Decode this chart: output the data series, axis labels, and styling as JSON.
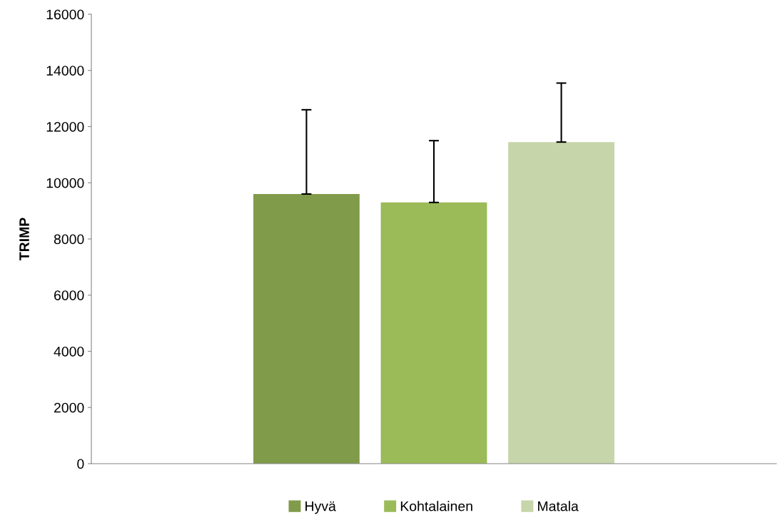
{
  "chart_data": {
    "type": "bar",
    "ylabel": "TRIMP",
    "categories": [
      null
    ],
    "series": [
      {
        "name": "Hyvä",
        "color": "#809b4a",
        "values": [
          9600
        ],
        "errors": [
          [
            9600,
            12600
          ]
        ]
      },
      {
        "name": "Kohtalainen",
        "color": "#9bbb59",
        "values": [
          9300
        ],
        "errors": [
          [
            9300,
            11500
          ]
        ]
      },
      {
        "name": "Matala",
        "color": "#c7d5aa",
        "values": [
          11450
        ],
        "errors": [
          [
            11450,
            13550
          ]
        ]
      }
    ],
    "ylim": [
      0,
      16000
    ],
    "yticks": [
      0,
      2000,
      4000,
      6000,
      8000,
      10000,
      12000,
      14000,
      16000
    ],
    "grid": false,
    "legend": "bottom"
  }
}
